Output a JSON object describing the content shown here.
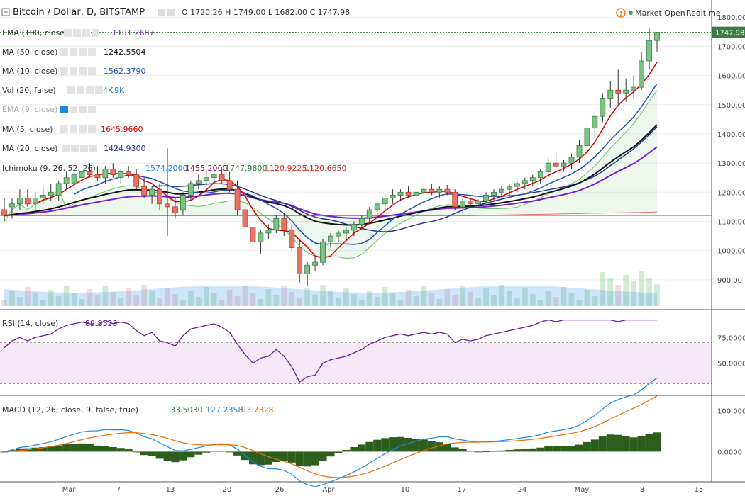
{
  "header": {
    "symbol": "Bitcoin / Dollar, D, BITSTAMP",
    "ohlc": "O 1720.26  H 1749.00  L 1682.00  C 1747.98",
    "market_status": "Market Open",
    "realtime": "Realtime"
  },
  "price_axis": {
    "ticks": [
      "1800.00",
      "1700.00",
      "1600.00",
      "1500.00",
      "1400.00",
      "1300.00",
      "1200.00",
      "1100.00",
      "1000.00",
      "900.00"
    ],
    "last_price": "1747.98"
  },
  "indicators": [
    {
      "label": "EMA (100, close)",
      "value": "1191.2687",
      "color": "#7b1fd6"
    },
    {
      "label": "MA (50, close)",
      "value": "1242.5504",
      "color": "#111111"
    },
    {
      "label": "MA (10, close)",
      "value": "1562.3790",
      "color": "#1f4fbf"
    },
    {
      "label": "Vol (20, false)",
      "value": "4K",
      "value2": "9K",
      "color": "#2e7d32",
      "color2": "#1e88e5"
    },
    {
      "label": "EMA (9, close)",
      "value": "",
      "color": "#999999"
    },
    {
      "label": "MA (5, close)",
      "value": "1645.9660",
      "color": "#d50000"
    },
    {
      "label": "MA (20, close)",
      "value": "1424.9300",
      "color": "#283593"
    },
    {
      "label": "Ichimoku (9, 26, 52, 26)",
      "values": [
        "1574.2000",
        "1455.2000",
        "1747.9800",
        "1120.9225",
        "1120.6650"
      ],
      "colors": [
        "#1e88e5",
        "#880e4f",
        "#2e7d32",
        "#d32f2f",
        "#c62828"
      ]
    }
  ],
  "rsi": {
    "label": "RSI (14, close)",
    "value": "89.8523",
    "ticks": [
      "75.0000",
      "50.0000"
    ],
    "color": "#6a1b9a"
  },
  "macd": {
    "label": "MACD (12, 26, close, 9, false, true)",
    "values": [
      "33.5030",
      "127.2358",
      "93.7328"
    ],
    "colors": [
      "#2e7d32",
      "#1e88e5",
      "#ef6c00"
    ],
    "ticks": [
      "100.0000",
      "0.0000"
    ]
  },
  "time_axis": {
    "labels": [
      "Mar",
      "7",
      "13",
      "20",
      "26",
      "Apr",
      "10",
      "17",
      "24",
      "May",
      "8",
      "15"
    ]
  },
  "chart_data": {
    "type": "candlestick",
    "price_range": [
      800,
      1820
    ],
    "candles": [
      [
        1140,
        1180,
        1100,
        1120
      ],
      [
        1150,
        1180,
        1110,
        1160
      ],
      [
        1160,
        1210,
        1140,
        1180
      ],
      [
        1180,
        1210,
        1150,
        1160
      ],
      [
        1160,
        1200,
        1140,
        1180
      ],
      [
        1180,
        1220,
        1160,
        1190
      ],
      [
        1190,
        1230,
        1170,
        1200
      ],
      [
        1190,
        1240,
        1170,
        1230
      ],
      [
        1230,
        1270,
        1210,
        1250
      ],
      [
        1230,
        1280,
        1210,
        1260
      ],
      [
        1250,
        1290,
        1230,
        1270
      ],
      [
        1270,
        1300,
        1250,
        1260
      ],
      [
        1260,
        1290,
        1240,
        1250
      ],
      [
        1250,
        1290,
        1230,
        1280
      ],
      [
        1280,
        1300,
        1250,
        1260
      ],
      [
        1250,
        1280,
        1230,
        1270
      ],
      [
        1270,
        1290,
        1250,
        1260
      ],
      [
        1260,
        1280,
        1210,
        1220
      ],
      [
        1220,
        1250,
        1180,
        1190
      ],
      [
        1190,
        1220,
        1160,
        1210
      ],
      [
        1210,
        1230,
        1140,
        1160
      ],
      [
        1160,
        1350,
        1050,
        1150
      ],
      [
        1150,
        1180,
        1110,
        1130
      ],
      [
        1140,
        1200,
        1120,
        1190
      ],
      [
        1190,
        1240,
        1170,
        1230
      ],
      [
        1230,
        1260,
        1210,
        1240
      ],
      [
        1240,
        1270,
        1220,
        1250
      ],
      [
        1250,
        1280,
        1230,
        1260
      ],
      [
        1260,
        1280,
        1230,
        1240
      ],
      [
        1240,
        1270,
        1200,
        1210
      ],
      [
        1210,
        1240,
        1120,
        1140
      ],
      [
        1140,
        1160,
        1040,
        1080
      ],
      [
        1080,
        1110,
        1000,
        1030
      ],
      [
        1030,
        1070,
        990,
        1060
      ],
      [
        1060,
        1090,
        1040,
        1070
      ],
      [
        1070,
        1120,
        1060,
        1110
      ],
      [
        1110,
        1130,
        1050,
        1070
      ],
      [
        1070,
        1090,
        1000,
        1010
      ],
      [
        1010,
        1040,
        890,
        920
      ],
      [
        920,
        960,
        880,
        950
      ],
      [
        950,
        980,
        930,
        960
      ],
      [
        960,
        1040,
        950,
        1030
      ],
      [
        1030,
        1060,
        1010,
        1050
      ],
      [
        1050,
        1070,
        1030,
        1060
      ],
      [
        1060,
        1080,
        1040,
        1070
      ],
      [
        1070,
        1100,
        1050,
        1090
      ],
      [
        1090,
        1120,
        1070,
        1110
      ],
      [
        1110,
        1150,
        1090,
        1140
      ],
      [
        1140,
        1170,
        1120,
        1160
      ],
      [
        1160,
        1190,
        1140,
        1180
      ],
      [
        1180,
        1210,
        1160,
        1190
      ],
      [
        1190,
        1210,
        1170,
        1200
      ],
      [
        1200,
        1220,
        1180,
        1190
      ],
      [
        1190,
        1210,
        1170,
        1200
      ],
      [
        1200,
        1220,
        1180,
        1210
      ],
      [
        1210,
        1230,
        1190,
        1200
      ],
      [
        1200,
        1220,
        1180,
        1210
      ],
      [
        1210,
        1225,
        1190,
        1200
      ],
      [
        1200,
        1210,
        1140,
        1150
      ],
      [
        1150,
        1180,
        1130,
        1170
      ],
      [
        1170,
        1180,
        1150,
        1160
      ],
      [
        1160,
        1175,
        1145,
        1170
      ],
      [
        1170,
        1200,
        1160,
        1190
      ],
      [
        1190,
        1210,
        1170,
        1200
      ],
      [
        1200,
        1220,
        1180,
        1210
      ],
      [
        1210,
        1230,
        1190,
        1220
      ],
      [
        1220,
        1240,
        1200,
        1230
      ],
      [
        1230,
        1250,
        1210,
        1240
      ],
      [
        1240,
        1260,
        1220,
        1250
      ],
      [
        1250,
        1280,
        1230,
        1270
      ],
      [
        1270,
        1320,
        1250,
        1300
      ],
      [
        1300,
        1340,
        1280,
        1290
      ],
      [
        1290,
        1310,
        1270,
        1300
      ],
      [
        1300,
        1330,
        1280,
        1320
      ],
      [
        1320,
        1380,
        1300,
        1360
      ],
      [
        1360,
        1430,
        1340,
        1420
      ],
      [
        1420,
        1480,
        1390,
        1460
      ],
      [
        1460,
        1540,
        1440,
        1520
      ],
      [
        1520,
        1580,
        1490,
        1550
      ],
      [
        1550,
        1620,
        1500,
        1540
      ],
      [
        1540,
        1590,
        1510,
        1550
      ],
      [
        1550,
        1600,
        1520,
        1560
      ],
      [
        1560,
        1680,
        1550,
        1650
      ],
      [
        1650,
        1760,
        1620,
        1720
      ],
      [
        1720,
        1749,
        1682,
        1748
      ]
    ],
    "volume_max": "9K"
  }
}
